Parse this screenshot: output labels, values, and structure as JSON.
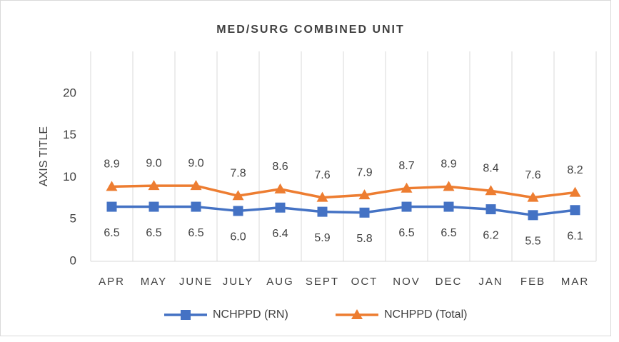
{
  "chart_data": {
    "type": "line",
    "title": "MED/SURG COMBINED UNIT",
    "y_label": "AXIS TITLE",
    "categories": [
      "APR",
      "MAY",
      "JUNE",
      "JULY",
      "AUG",
      "SEPT",
      "OCT",
      "NOV",
      "DEC",
      "JAN",
      "FEB",
      "MAR"
    ],
    "series": [
      {
        "name": "NCHPPD (RN)",
        "color": "#4472c4",
        "marker": "square",
        "values": [
          6.5,
          6.5,
          6.5,
          6.0,
          6.4,
          5.9,
          5.8,
          6.5,
          6.5,
          6.2,
          5.5,
          6.1
        ],
        "value_labels": [
          "6.5",
          "6.5",
          "6.5",
          "6.0",
          "6.4",
          "5.9",
          "5.8",
          "6.5",
          "6.5",
          "6.2",
          "5.5",
          "6.1"
        ]
      },
      {
        "name": "NCHPPD (Total)",
        "color": "#ed7d31",
        "marker": "triangle",
        "values": [
          8.9,
          9.0,
          9.0,
          7.8,
          8.6,
          7.6,
          7.9,
          8.7,
          8.9,
          8.4,
          7.6,
          8.2
        ],
        "value_labels": [
          "8.9",
          "9.0",
          "9.0",
          "7.8",
          "8.6",
          "7.6",
          "7.9",
          "8.7",
          "8.9",
          "8.4",
          "7.6",
          "8.2"
        ]
      }
    ],
    "ylim": [
      0,
      25
    ],
    "yticks": [
      0,
      5,
      10,
      15,
      20
    ],
    "grid": "x",
    "legend": "bottom"
  }
}
